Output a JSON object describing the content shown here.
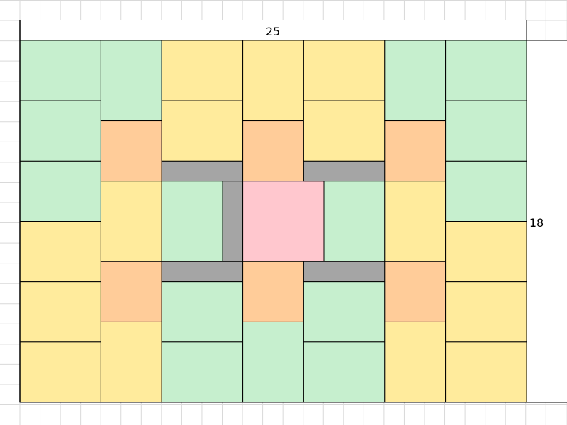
{
  "dimensions": {
    "width_label": "25",
    "height_label": "18"
  },
  "colors": {
    "green": "#c6efce",
    "yellow": "#ffeb9c",
    "orange": "#ffcc99",
    "gray": "#a5a5a5",
    "pink": "#ffc7ce",
    "grid": "#d9d9d9",
    "border": "#000000"
  }
}
